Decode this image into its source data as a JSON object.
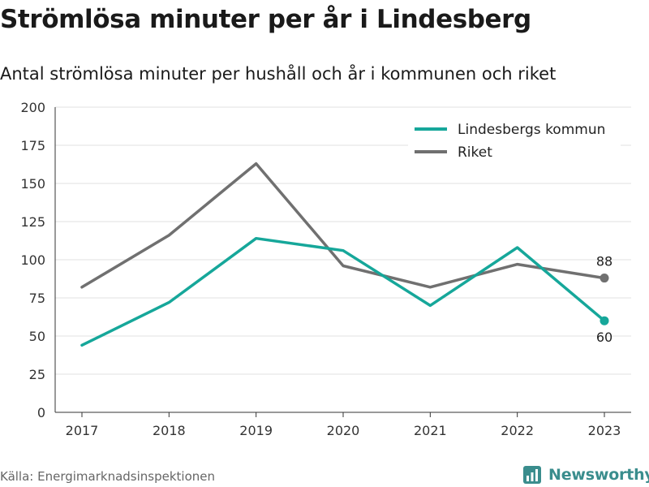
{
  "header": {
    "title": "Strömlösa minuter per år i Lindesberg",
    "subtitle": "Antal strömlösa minuter per hushåll och år i kommunen och riket"
  },
  "footer": {
    "source": "Källa: Energimarknadsinspektionen",
    "brand": "Newsworthy"
  },
  "colors": {
    "kommun": "#16a79a",
    "riket": "#707070",
    "brand": "#3a8d8d"
  },
  "chart_data": {
    "type": "line",
    "x": [
      2017,
      2018,
      2019,
      2020,
      2021,
      2022,
      2023
    ],
    "series": [
      {
        "name": "Riket",
        "values": [
          82,
          116,
          163,
          96,
          82,
          97,
          88
        ],
        "color": "#707070"
      },
      {
        "name": "Lindesbergs kommun",
        "values": [
          44,
          72,
          114,
          106,
          70,
          108,
          60
        ],
        "color": "#16a79a"
      }
    ],
    "yticks": [
      0,
      25,
      50,
      75,
      100,
      125,
      150,
      175,
      200
    ],
    "ylim": [
      0,
      200
    ],
    "grid": true,
    "legend": [
      "Lindesbergs kommun",
      "Riket"
    ],
    "legend_position": "top-right",
    "end_labels": [
      {
        "series": "Riket",
        "text": "88",
        "position": "above"
      },
      {
        "series": "Lindesbergs kommun",
        "text": "60",
        "position": "below"
      }
    ]
  }
}
